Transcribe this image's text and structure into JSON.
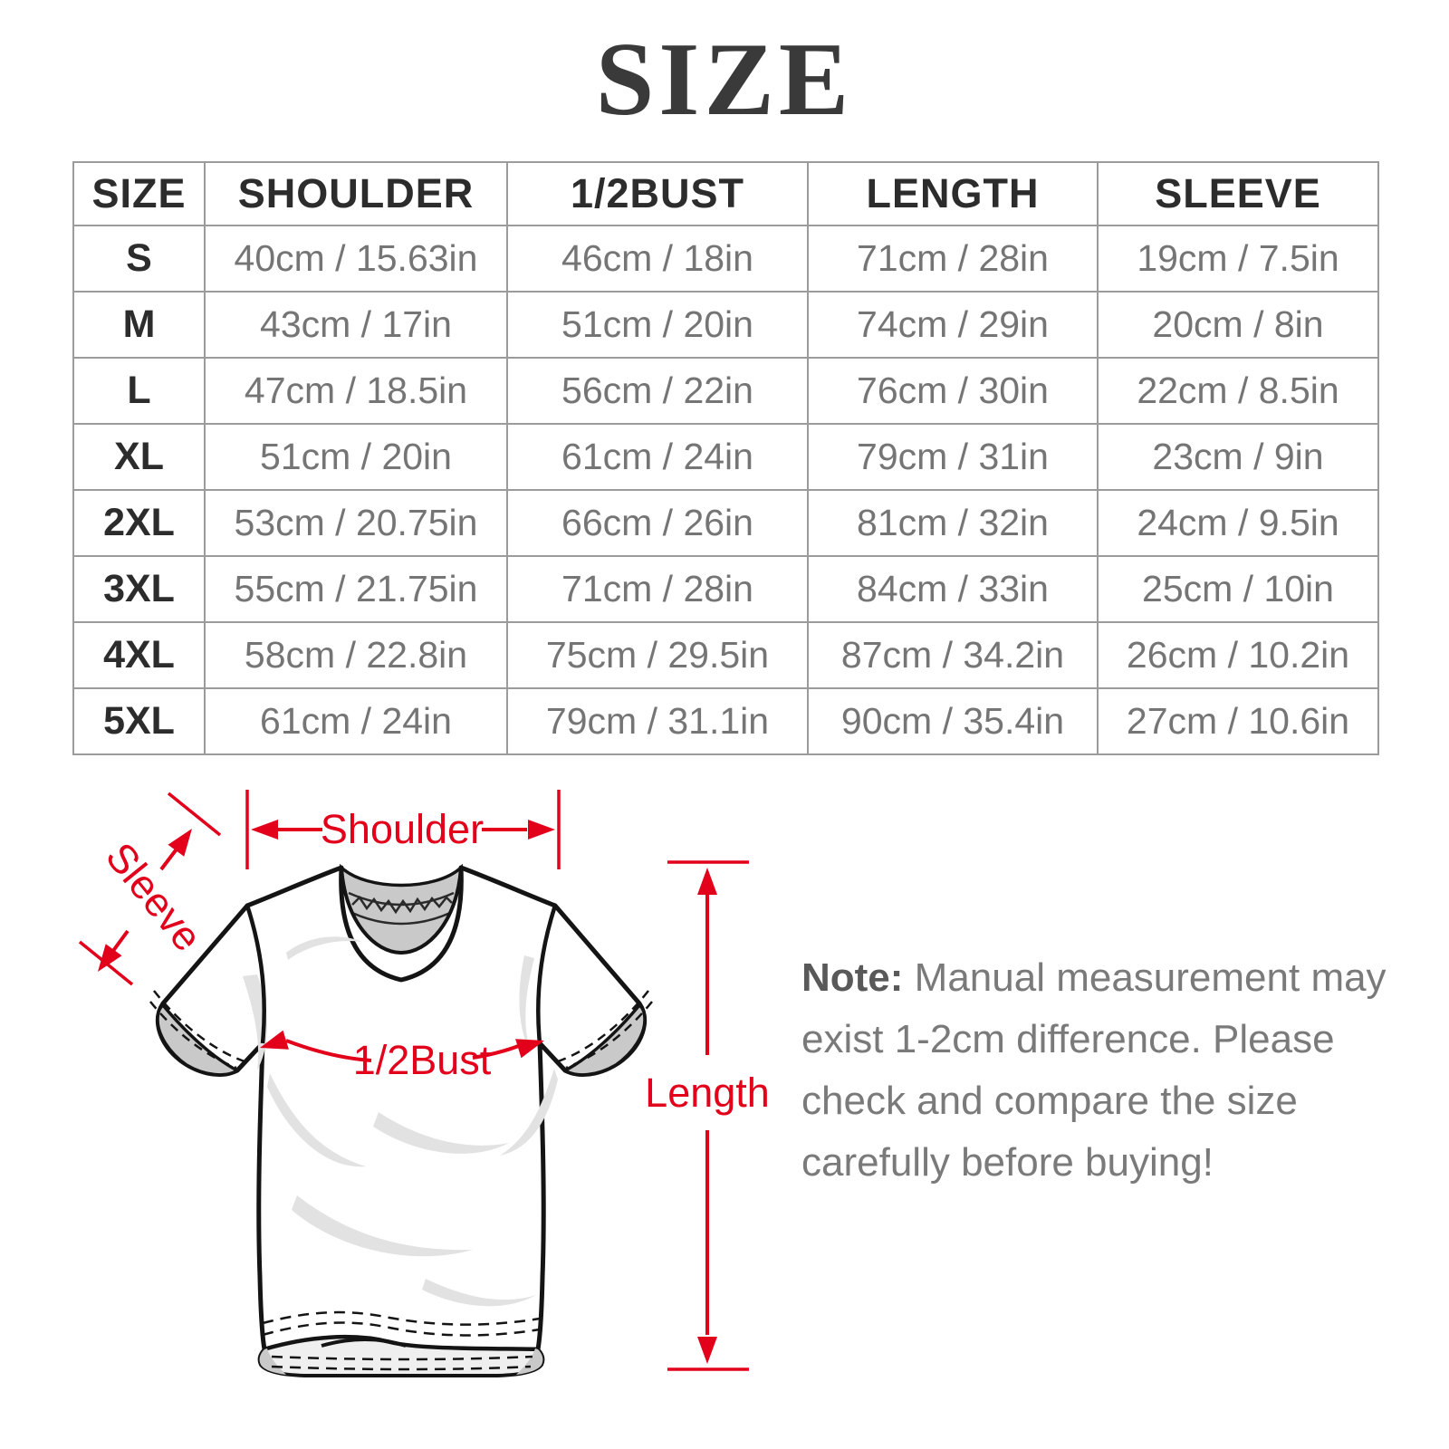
{
  "page": {
    "title": "SIZE"
  },
  "size_table": {
    "columns": [
      "SIZE",
      "SHOULDER",
      "1/2BUST",
      "LENGTH",
      "SLEEVE"
    ],
    "rows": [
      [
        "S",
        "40cm / 15.63in",
        "46cm / 18in",
        "71cm / 28in",
        "19cm / 7.5in"
      ],
      [
        "M",
        "43cm / 17in",
        "51cm / 20in",
        "74cm / 29in",
        "20cm / 8in"
      ],
      [
        "L",
        "47cm / 18.5in",
        "56cm / 22in",
        "76cm / 30in",
        "22cm / 8.5in"
      ],
      [
        "XL",
        "51cm / 20in",
        "61cm / 24in",
        "79cm / 31in",
        "23cm / 9in"
      ],
      [
        "2XL",
        "53cm / 20.75in",
        "66cm / 26in",
        "81cm / 32in",
        "24cm / 9.5in"
      ],
      [
        "3XL",
        "55cm / 21.75in",
        "71cm / 28in",
        "84cm / 33in",
        "25cm / 10in"
      ],
      [
        "4XL",
        "58cm / 22.8in",
        "75cm / 29.5in",
        "87cm / 34.2in",
        "26cm / 10.2in"
      ],
      [
        "5XL",
        "61cm / 24in",
        "79cm / 31.1in",
        "90cm / 35.4in",
        "27cm / 10.6in"
      ]
    ]
  },
  "diagram": {
    "labels": {
      "shoulder": "Shoulder",
      "sleeve": "Sleeve",
      "half_bust": "1/2Bust",
      "length": "Length"
    },
    "annotation_color": "#e2001b"
  },
  "note": {
    "prefix": "Note:",
    "lines": [
      "Manual measurement may",
      "exist 1-2cm difference. Please",
      "check and compare the size",
      "carefully before buying!"
    ]
  }
}
